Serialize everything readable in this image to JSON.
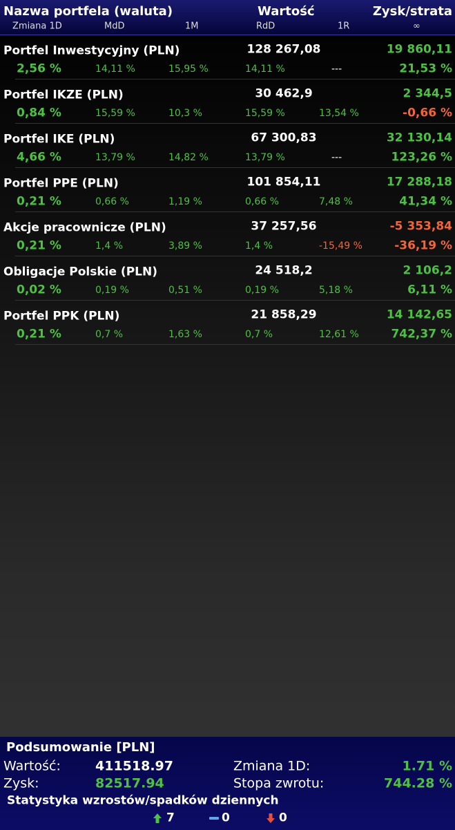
{
  "header": {
    "title": "Nazwa portfela (waluta)",
    "value": "Wartość",
    "profit": "Zysk/strata",
    "columns": [
      "Zmiana 1D",
      "MdD",
      "1M",
      "RdD",
      "1R",
      "∞"
    ]
  },
  "rows": [
    {
      "name": "Portfel Inwestycyjny (PLN)",
      "value": "128 267,08",
      "profit": "19 860,11",
      "stats": [
        "2,56 %",
        "14,11 %",
        "15,95 %",
        "14,11 %",
        "---",
        "21,53 %"
      ]
    },
    {
      "name": "Portfel IKZE (PLN)",
      "value": "30 462,9",
      "profit": "2 344,5",
      "stats": [
        "0,84 %",
        "15,59 %",
        "10,3 %",
        "15,59 %",
        "13,54 %",
        "-0,66 %"
      ]
    },
    {
      "name": "Portfel IKE (PLN)",
      "value": "67 300,83",
      "profit": "32 130,14",
      "stats": [
        "4,66 %",
        "13,79 %",
        "14,82 %",
        "13,79 %",
        "---",
        "123,26 %"
      ]
    },
    {
      "name": "Portfel PPE (PLN)",
      "value": "101 854,11",
      "profit": "17 288,18",
      "stats": [
        "0,21 %",
        "0,66 %",
        "1,19 %",
        "0,66 %",
        "7,48 %",
        "41,34 %"
      ]
    },
    {
      "name": "Akcje pracownicze (PLN)",
      "value": "37 257,56",
      "profit": "-5 353,84",
      "stats": [
        "0,21 %",
        "1,4 %",
        "3,89 %",
        "1,4 %",
        "-15,49 %",
        "-36,19 %"
      ]
    },
    {
      "name": "Obligacje Polskie (PLN)",
      "value": "24 518,2",
      "profit": "2 106,2",
      "stats": [
        "0,02 %",
        "0,19 %",
        "0,51 %",
        "0,19 %",
        "5,18 %",
        "6,11 %"
      ]
    },
    {
      "name": "Portfel PPK (PLN)",
      "value": "21 858,29",
      "profit": "14 142,65",
      "stats": [
        "0,21 %",
        "0,7 %",
        "1,63 %",
        "0,7 %",
        "12,61 %",
        "742,37 %"
      ]
    }
  ],
  "summary": {
    "title": "Podsumowanie [PLN]",
    "value_label": "Wartość:",
    "value": "411518.97",
    "profit_label": "Zysk:",
    "profit": "82517.94",
    "change_label": "Zmiana 1D:",
    "change": "1.71 %",
    "return_label": "Stopa zwrotu:",
    "return": "744.28 %",
    "stats_title": "Statystyka wzrostów/spadków dziennych",
    "up": "7",
    "flat": "0",
    "down": "0"
  }
}
